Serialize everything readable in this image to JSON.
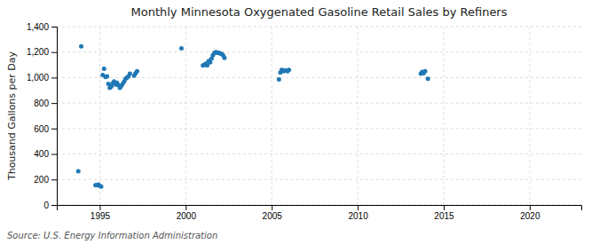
{
  "chart_data": {
    "type": "scatter",
    "title": "Monthly Minnesota Oxygenated Gasoline Retail Sales by Refiners",
    "ylabel": "Thousand Gallons per Day",
    "source": "Source: U.S. Energy Information Administration",
    "xlim": [
      1992.5,
      2023
    ],
    "ylim": [
      0,
      1400
    ],
    "xticks": [
      1995,
      2000,
      2005,
      2010,
      2015,
      2020
    ],
    "yticks": [
      0,
      200,
      400,
      600,
      800,
      {
        "value": 1000,
        "label": "1,000"
      },
      {
        "value": 1200,
        "label": "1,200"
      },
      {
        "value": 1400,
        "label": "1,400"
      }
    ],
    "grid": true,
    "x": [
      1993.75,
      1993.92,
      1994.75,
      1994.83,
      1994.92,
      1995.0,
      1995.08,
      1995.17,
      1995.25,
      1995.33,
      1995.42,
      1995.5,
      1995.58,
      1995.67,
      1995.75,
      1995.83,
      1995.92,
      1996.0,
      1996.08,
      1996.17,
      1996.25,
      1996.33,
      1996.42,
      1996.5,
      1996.58,
      1996.67,
      1996.75,
      1997.0,
      1997.08,
      1997.17,
      1999.75,
      2001.0,
      2001.08,
      2001.17,
      2001.25,
      2001.33,
      2001.42,
      2001.5,
      2001.58,
      2001.67,
      2001.75,
      2001.83,
      2001.92,
      2002.0,
      2002.08,
      2002.17,
      2002.25,
      2005.42,
      2005.5,
      2005.58,
      2005.67,
      2005.75,
      2005.83,
      2005.92,
      2006.0,
      2013.67,
      2013.75,
      2013.83,
      2013.92,
      2014.08
    ],
    "values": [
      265,
      1245,
      155,
      155,
      160,
      150,
      145,
      1020,
      1070,
      1005,
      1010,
      950,
      920,
      930,
      955,
      970,
      945,
      960,
      940,
      920,
      935,
      950,
      970,
      990,
      1000,
      1010,
      1030,
      1015,
      1035,
      1050,
      1230,
      1095,
      1100,
      1110,
      1095,
      1130,
      1120,
      1150,
      1175,
      1195,
      1200,
      1195,
      1195,
      1190,
      1185,
      1175,
      1155,
      985,
      1040,
      1060,
      1050,
      1055,
      1055,
      1050,
      1060,
      1030,
      1045,
      1035,
      1050,
      990
    ]
  }
}
